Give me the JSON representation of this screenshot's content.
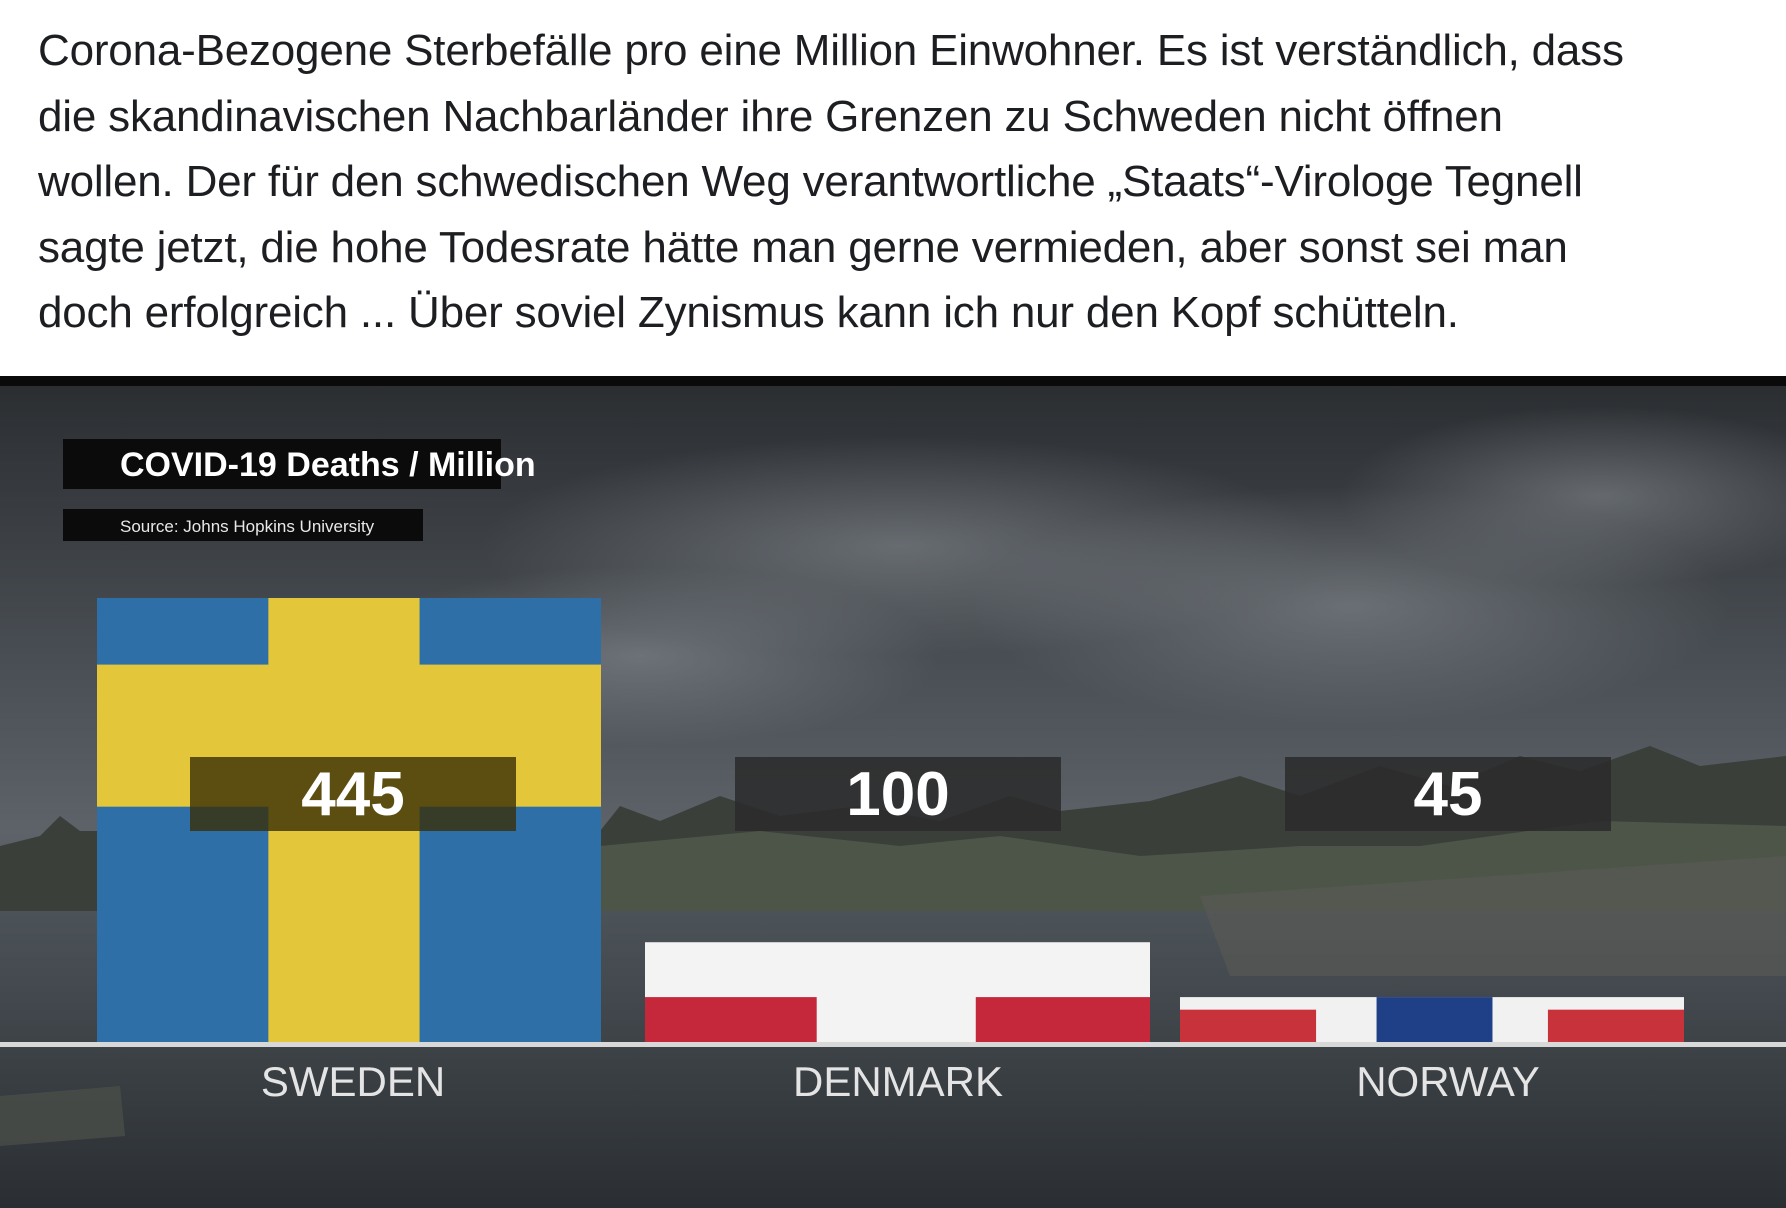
{
  "post": {
    "lines": [
      "Corona-Bezogene Sterbefälle pro eine Million Einwohner. Es ist verständlich, dass",
      "die skandinavischen Nachbarländer ihre Grenzen zu Schweden nicht öffnen",
      "wollen. Der für den schwedischen Weg verantwortliche „Staats“-Virologe Tegnell",
      "sagte jetzt, die hohe Todesrate hätte man gerne vermieden, aber sonst sei man",
      "doch erfolgreich ... Über soviel Zynismus kann ich nur den Kopf schütteln."
    ]
  },
  "chart_data": {
    "type": "bar",
    "title": "COVID-19 Deaths / Million",
    "subtitle": "Source: Johns Hopkins University",
    "categories": [
      "SWEDEN",
      "DENMARK",
      "NORWAY"
    ],
    "values": [
      445,
      100,
      45
    ],
    "value_labels": [
      "445",
      "100",
      "45"
    ],
    "ylim": [
      0,
      445
    ],
    "grid": false,
    "legend": "none",
    "bar_styles": [
      "flag-sweden",
      "flag-denmark",
      "flag-norway"
    ],
    "colors": {
      "sweden_blue": "#2f6fa8",
      "sweden_yellow": "#e3c63a",
      "denmark_red": "#c4283a",
      "denmark_white": "#f3f3f3",
      "norway_red": "#c8323a",
      "norway_white": "#f1f1f1",
      "norway_blue": "#1f3f86",
      "title_box": "#0b0b0b",
      "value_box": "#2a2a2a"
    }
  }
}
